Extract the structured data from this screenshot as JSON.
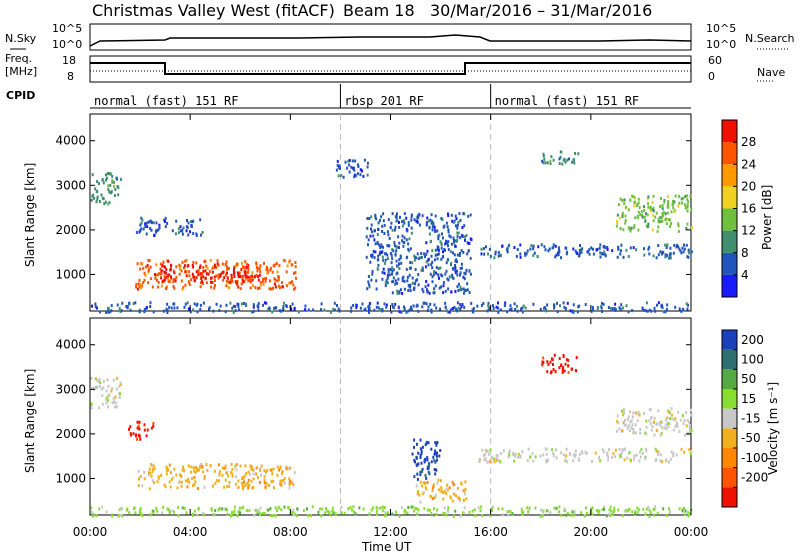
{
  "header": {
    "station": "Christmas Valley West (fitACF)",
    "beam": "Beam 18",
    "dates": "30/Mar/2016 – 31/Mar/2016"
  },
  "strips": {
    "nsky_label": "N.Sky",
    "nsky_ticks": [
      "10^5",
      "10^0"
    ],
    "nsearch_label": "N.Search",
    "nsearch_ticks": [
      "10^5",
      "10^0"
    ],
    "freq_label_1": "Freq.",
    "freq_label_2": "[MHz]",
    "freq_ticks": [
      "18",
      "8"
    ],
    "nave_label": "Nave",
    "nave_ticks": [
      "60",
      "0"
    ],
    "cpid_label": "CPID"
  },
  "cpid_segments": [
    {
      "label": "normal (fast) 151 RF",
      "start_h": 0
    },
    {
      "label": "rbsp 201 RF",
      "start_h": 10
    },
    {
      "label": "normal (fast) 151 RF",
      "start_h": 16
    }
  ],
  "time_axis": {
    "label": "Time UT",
    "ticks": [
      "00:00",
      "04:00",
      "08:00",
      "12:00",
      "16:00",
      "20:00",
      "00:00"
    ],
    "range_h": [
      0,
      24
    ]
  },
  "range_axis": {
    "label": "Slant Range [km]",
    "ticks": [
      "1000",
      "2000",
      "3000",
      "4000"
    ],
    "range_km": [
      180,
      4600
    ]
  },
  "power_bar": {
    "label": "Power [dB]",
    "ticks": [
      "4",
      "8",
      "12",
      "16",
      "20",
      "24",
      "28"
    ],
    "colors": [
      "#1a1aff",
      "#2255bb",
      "#3f8f6f",
      "#70c040",
      "#f0d020",
      "#ff9900",
      "#ff5500",
      "#ee1100"
    ]
  },
  "velocity_bar": {
    "label": "Velocity [m s⁻¹]",
    "ticks": [
      "200",
      "100",
      "50",
      "15",
      "-15",
      "-50",
      "-100",
      "-200"
    ],
    "colors": [
      "#1a3fbb",
      "#2f6f6f",
      "#55aa44",
      "#88dd33",
      "#c8c8c8",
      "#f0b020",
      "#ff8800",
      "#ff5500",
      "#ee1100"
    ]
  },
  "chart_data": {
    "type": "heatmap",
    "x_unit": "hours UT",
    "y_unit": "km",
    "power_regions": [
      {
        "x": [
          1.8,
          8.2
        ],
        "y": [
          700,
          1350
        ],
        "level": 6
      },
      {
        "x": [
          2.8,
          6.8
        ],
        "y": [
          850,
          1250
        ],
        "level": 7
      },
      {
        "x": [
          0,
          1.2
        ],
        "y": [
          2600,
          3300
        ],
        "level": 2
      },
      {
        "x": [
          1.8,
          4.5
        ],
        "y": [
          1900,
          2300
        ],
        "level": 1
      },
      {
        "x": [
          11.0,
          15.2
        ],
        "y": [
          600,
          2400
        ],
        "level": 1
      },
      {
        "x": [
          9.8,
          11.2
        ],
        "y": [
          3200,
          3600
        ],
        "level": 1
      },
      {
        "x": [
          15.5,
          24
        ],
        "y": [
          1400,
          1700
        ],
        "level": 1
      },
      {
        "x": [
          21,
          24
        ],
        "y": [
          2000,
          2800
        ],
        "level": 3
      },
      {
        "x": [
          18,
          19.5
        ],
        "y": [
          3500,
          3800
        ],
        "level": 2
      },
      {
        "x": [
          0,
          24
        ],
        "y": [
          180,
          400
        ],
        "level": 1
      }
    ],
    "velocity_regions": [
      {
        "x": [
          1.8,
          8.2
        ],
        "y": [
          800,
          1350
        ],
        "level": 5
      },
      {
        "x": [
          1.5,
          2.5
        ],
        "y": [
          1900,
          2300
        ],
        "level": 8
      },
      {
        "x": [
          0,
          1.2
        ],
        "y": [
          2600,
          3300
        ],
        "level": 4
      },
      {
        "x": [
          12.8,
          14.0
        ],
        "y": [
          1000,
          1900
        ],
        "level": 0
      },
      {
        "x": [
          13.0,
          15.0
        ],
        "y": [
          500,
          1000
        ],
        "level": 5
      },
      {
        "x": [
          15.5,
          24
        ],
        "y": [
          1400,
          1700
        ],
        "level": 4
      },
      {
        "x": [
          21,
          24
        ],
        "y": [
          2000,
          2600
        ],
        "level": 4
      },
      {
        "x": [
          18,
          19.5
        ],
        "y": [
          3400,
          3800
        ],
        "level": 8
      },
      {
        "x": [
          0,
          24
        ],
        "y": [
          180,
          400
        ],
        "level": 3
      }
    ]
  }
}
